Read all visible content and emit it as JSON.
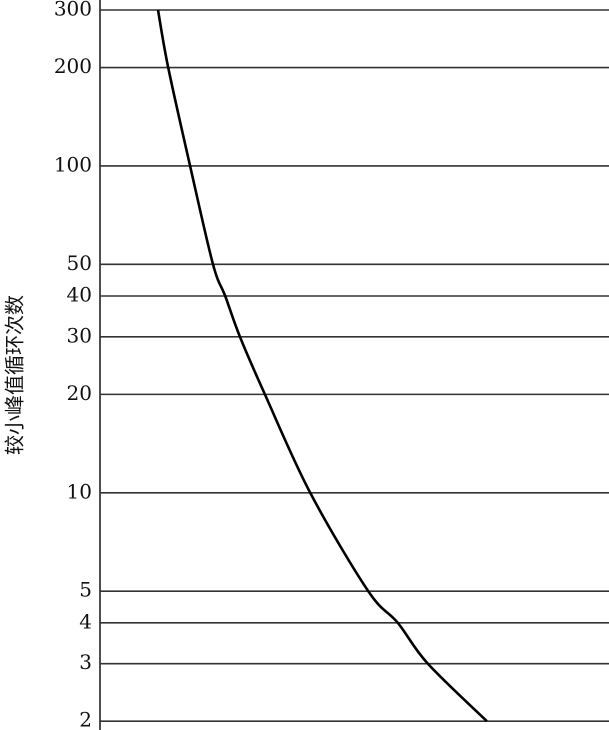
{
  "chart_data": {
    "type": "line",
    "y_label": "较小峰值循环次数",
    "log_y": true,
    "grid": true,
    "ylim": [
      1.88,
      300
    ],
    "yticks": [
      2,
      3,
      4,
      5,
      10,
      20,
      30,
      40,
      50,
      100,
      200,
      300
    ],
    "xlim": [
      0,
      100
    ],
    "series": [
      {
        "color": "#000000",
        "x": [
          11.4,
          13.4,
          17.7,
          22.2,
          24.6,
          27.5,
          32.4,
          41.3,
          52.7,
          58.5,
          64.4,
          76
        ],
        "values": [
          300,
          200,
          100,
          50,
          40,
          30,
          20,
          10,
          5,
          4,
          3,
          2
        ]
      }
    ]
  }
}
